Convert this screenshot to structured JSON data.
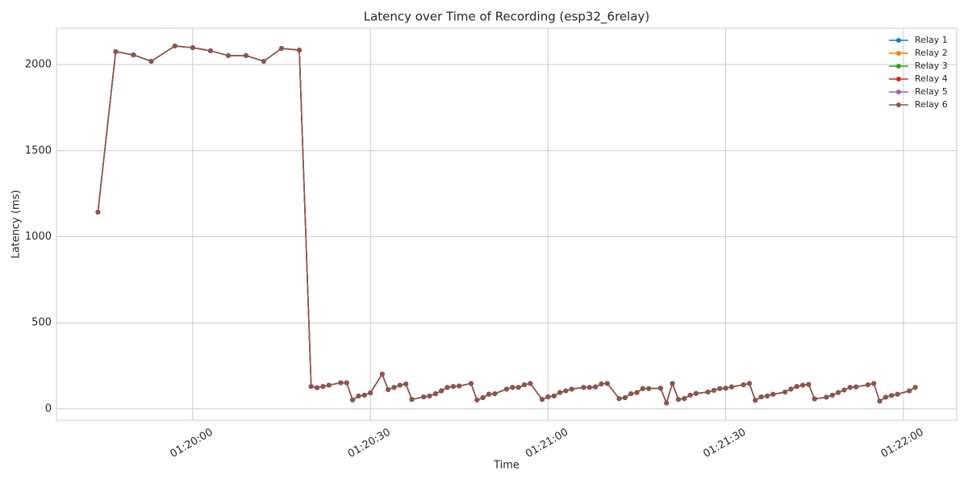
{
  "chart_data": {
    "type": "line",
    "title": "Latency over Time of Recording (esp32_6relay)",
    "xlabel": "Time",
    "ylabel": "Latency (ms)",
    "x": [
      "01:19:44",
      "01:19:47",
      "01:19:50",
      "01:19:53",
      "01:19:57",
      "01:20:00",
      "01:20:03",
      "01:20:06",
      "01:20:09",
      "01:20:12",
      "01:20:15",
      "01:20:18",
      "01:20:20",
      "01:20:21",
      "01:20:22",
      "01:20:23",
      "01:20:25",
      "01:20:26",
      "01:20:27",
      "01:20:28",
      "01:20:29",
      "01:20:30",
      "01:20:32",
      "01:20:33",
      "01:20:34",
      "01:20:35",
      "01:20:36",
      "01:20:37",
      "01:20:39",
      "01:20:40",
      "01:20:41",
      "01:20:42",
      "01:20:43",
      "01:20:44",
      "01:20:45",
      "01:20:47",
      "01:20:48",
      "01:20:49",
      "01:20:50",
      "01:20:51",
      "01:20:53",
      "01:20:54",
      "01:20:55",
      "01:20:56",
      "01:20:57",
      "01:20:59",
      "01:21:00",
      "01:21:01",
      "01:21:02",
      "01:21:03",
      "01:21:04",
      "01:21:06",
      "01:21:07",
      "01:21:08",
      "01:21:09",
      "01:21:10",
      "01:21:12",
      "01:21:13",
      "01:21:14",
      "01:21:15",
      "01:21:16",
      "01:21:17",
      "01:21:19",
      "01:21:20",
      "01:21:21",
      "01:21:22",
      "01:21:23",
      "01:21:24",
      "01:21:25",
      "01:21:27",
      "01:21:28",
      "01:21:29",
      "01:21:30",
      "01:21:31",
      "01:21:33",
      "01:21:34",
      "01:21:35",
      "01:21:36",
      "01:21:37",
      "01:21:38",
      "01:21:40",
      "01:21:41",
      "01:21:42",
      "01:21:43",
      "01:21:44",
      "01:21:45",
      "01:21:47",
      "01:21:48",
      "01:21:49",
      "01:21:50",
      "01:21:51",
      "01:21:52",
      "01:21:54",
      "01:21:55",
      "01:21:56",
      "01:21:57",
      "01:21:58",
      "01:21:59",
      "01:22:01",
      "01:22:02"
    ],
    "series": [
      {
        "name": "Relay 1",
        "color": "#1f77b4",
        "values": [
          1143,
          2075,
          2056,
          2019,
          2108,
          2098,
          2080,
          2052,
          2052,
          2019,
          2094,
          2084,
          130,
          123,
          130,
          138,
          152,
          152,
          52,
          75,
          80,
          93,
          202,
          112,
          125,
          138,
          145,
          55,
          70,
          75,
          88,
          105,
          125,
          130,
          133,
          148,
          52,
          65,
          85,
          88,
          115,
          125,
          125,
          140,
          148,
          55,
          70,
          75,
          95,
          105,
          115,
          125,
          125,
          128,
          145,
          148,
          60,
          65,
          88,
          95,
          118,
          118,
          120,
          35,
          148,
          55,
          60,
          80,
          90,
          98,
          108,
          118,
          120,
          128,
          140,
          148,
          50,
          70,
          75,
          85,
          98,
          115,
          130,
          138,
          142,
          58,
          68,
          80,
          95,
          110,
          125,
          128,
          140,
          148,
          45,
          68,
          78,
          85,
          105,
          125
        ]
      },
      {
        "name": "Relay 2",
        "color": "#ff7f0e",
        "values": [
          1143,
          2075,
          2056,
          2019,
          2108,
          2098,
          2080,
          2052,
          2052,
          2019,
          2094,
          2084,
          130,
          123,
          130,
          138,
          152,
          152,
          52,
          75,
          80,
          93,
          202,
          112,
          125,
          138,
          145,
          55,
          70,
          75,
          88,
          105,
          125,
          130,
          133,
          148,
          52,
          65,
          85,
          88,
          115,
          125,
          125,
          140,
          148,
          55,
          70,
          75,
          95,
          105,
          115,
          125,
          125,
          128,
          145,
          148,
          60,
          65,
          88,
          95,
          118,
          118,
          120,
          35,
          148,
          55,
          60,
          80,
          90,
          98,
          108,
          118,
          120,
          128,
          140,
          148,
          50,
          70,
          75,
          85,
          98,
          115,
          130,
          138,
          142,
          58,
          68,
          80,
          95,
          110,
          125,
          128,
          140,
          148,
          45,
          68,
          78,
          85,
          105,
          125
        ]
      },
      {
        "name": "Relay 3",
        "color": "#2ca02c",
        "values": [
          1143,
          2075,
          2056,
          2019,
          2108,
          2098,
          2080,
          2052,
          2052,
          2019,
          2094,
          2084,
          130,
          123,
          130,
          138,
          152,
          152,
          52,
          75,
          80,
          93,
          202,
          112,
          125,
          138,
          145,
          55,
          70,
          75,
          88,
          105,
          125,
          130,
          133,
          148,
          52,
          65,
          85,
          88,
          115,
          125,
          125,
          140,
          148,
          55,
          70,
          75,
          95,
          105,
          115,
          125,
          125,
          128,
          145,
          148,
          60,
          65,
          88,
          95,
          118,
          118,
          120,
          35,
          148,
          55,
          60,
          80,
          90,
          98,
          108,
          118,
          120,
          128,
          140,
          148,
          50,
          70,
          75,
          85,
          98,
          115,
          130,
          138,
          142,
          58,
          68,
          80,
          95,
          110,
          125,
          128,
          140,
          148,
          45,
          68,
          78,
          85,
          105,
          125
        ]
      },
      {
        "name": "Relay 4",
        "color": "#d62728",
        "values": [
          1143,
          2075,
          2056,
          2019,
          2108,
          2098,
          2080,
          2052,
          2052,
          2019,
          2094,
          2084,
          130,
          123,
          130,
          138,
          152,
          152,
          52,
          75,
          80,
          93,
          202,
          112,
          125,
          138,
          145,
          55,
          70,
          75,
          88,
          105,
          125,
          130,
          133,
          148,
          52,
          65,
          85,
          88,
          115,
          125,
          125,
          140,
          148,
          55,
          70,
          75,
          95,
          105,
          115,
          125,
          125,
          128,
          145,
          148,
          60,
          65,
          88,
          95,
          118,
          118,
          120,
          35,
          148,
          55,
          60,
          80,
          90,
          98,
          108,
          118,
          120,
          128,
          140,
          148,
          50,
          70,
          75,
          85,
          98,
          115,
          130,
          138,
          142,
          58,
          68,
          80,
          95,
          110,
          125,
          128,
          140,
          148,
          45,
          68,
          78,
          85,
          105,
          125
        ]
      },
      {
        "name": "Relay 5",
        "color": "#9467bd",
        "values": [
          1143,
          2075,
          2056,
          2019,
          2108,
          2098,
          2080,
          2052,
          2052,
          2019,
          2094,
          2084,
          130,
          123,
          130,
          138,
          152,
          152,
          52,
          75,
          80,
          93,
          202,
          112,
          125,
          138,
          145,
          55,
          70,
          75,
          88,
          105,
          125,
          130,
          133,
          148,
          52,
          65,
          85,
          88,
          115,
          125,
          125,
          140,
          148,
          55,
          70,
          75,
          95,
          105,
          115,
          125,
          125,
          128,
          145,
          148,
          60,
          65,
          88,
          95,
          118,
          118,
          120,
          35,
          148,
          55,
          60,
          80,
          90,
          98,
          108,
          118,
          120,
          128,
          140,
          148,
          50,
          70,
          75,
          85,
          98,
          115,
          130,
          138,
          142,
          58,
          68,
          80,
          95,
          110,
          125,
          128,
          140,
          148,
          45,
          68,
          78,
          85,
          105,
          125
        ]
      },
      {
        "name": "Relay 6",
        "color": "#8c564b",
        "values": [
          1143,
          2075,
          2056,
          2019,
          2108,
          2098,
          2080,
          2052,
          2052,
          2019,
          2094,
          2084,
          130,
          123,
          130,
          138,
          152,
          152,
          52,
          75,
          80,
          93,
          202,
          112,
          125,
          138,
          145,
          55,
          70,
          75,
          88,
          105,
          125,
          130,
          133,
          148,
          52,
          65,
          85,
          88,
          115,
          125,
          125,
          140,
          148,
          55,
          70,
          75,
          95,
          105,
          115,
          125,
          125,
          128,
          145,
          148,
          60,
          65,
          88,
          95,
          118,
          118,
          120,
          35,
          148,
          55,
          60,
          80,
          90,
          98,
          108,
          118,
          120,
          128,
          140,
          148,
          50,
          70,
          75,
          85,
          98,
          115,
          130,
          138,
          142,
          58,
          68,
          80,
          95,
          110,
          125,
          128,
          140,
          148,
          45,
          68,
          78,
          85,
          105,
          125
        ]
      }
    ],
    "xlim": [
      "01:19:37",
      "01:22:09"
    ],
    "xticks": [
      "01:20:00",
      "01:20:30",
      "01:21:00",
      "01:21:30",
      "01:22:00"
    ],
    "ylim": [
      -66,
      2211
    ],
    "yticks": [
      0,
      500,
      1000,
      1500,
      2000
    ],
    "grid": true,
    "legend": "upper right"
  }
}
